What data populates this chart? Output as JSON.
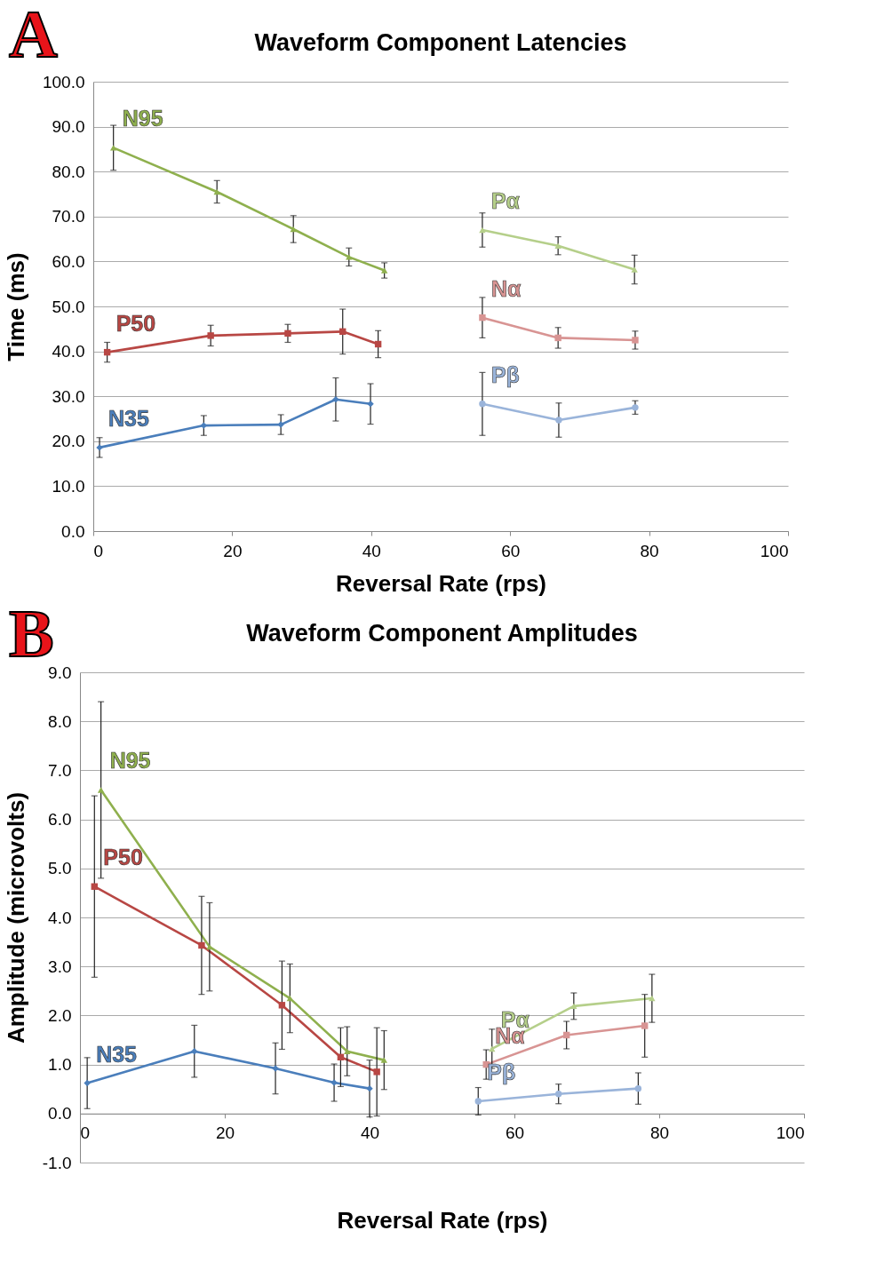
{
  "chart_data": [
    {
      "type": "line",
      "title": "Waveform Component Latencies",
      "xlabel": "Reversal Rate (rps)",
      "ylabel": "Time (ms)",
      "annotations": [
        "A"
      ],
      "xlim": [
        0,
        100
      ],
      "xticks": [
        0,
        20,
        40,
        60,
        80,
        100
      ],
      "ylim": [
        0,
        100
      ],
      "yticks": [
        {
          "value": 0,
          "label": "0.0"
        },
        {
          "value": 10,
          "label": "10.0"
        },
        {
          "value": 20,
          "label": "20.0"
        },
        {
          "value": 30,
          "label": "30.0"
        },
        {
          "value": 40,
          "label": "40.0"
        },
        {
          "value": 50,
          "label": "50.0"
        },
        {
          "value": 60,
          "label": "60.0"
        },
        {
          "value": 70,
          "label": "70.0"
        },
        {
          "value": 80,
          "label": "80.0"
        },
        {
          "value": 90,
          "label": "90.0"
        },
        {
          "value": 100,
          "label": "100.0"
        }
      ],
      "grid": "y",
      "legend": false,
      "series": [
        {
          "name": "N95",
          "color": "#8fb04e",
          "marker": "triangle",
          "x": [
            2.9,
            17.8,
            28.8,
            36.8,
            41.9
          ],
          "values": [
            85.3,
            75.5,
            67.2,
            61,
            58
          ],
          "errors": [
            5,
            2.5,
            3,
            2,
            1.7
          ]
        },
        {
          "name": "P50",
          "color": "#b84744",
          "marker": "square",
          "x": [
            2,
            16.9,
            28,
            35.9,
            41
          ],
          "values": [
            39.8,
            43.5,
            44,
            44.4,
            41.6
          ],
          "errors": [
            2.2,
            2.3,
            2,
            5,
            3
          ]
        },
        {
          "name": "N35",
          "color": "#4a7ebb",
          "marker": "diamond",
          "x": [
            0.9,
            15.9,
            27,
            34.9,
            39.9
          ],
          "values": [
            18.6,
            23.5,
            23.7,
            29.3,
            28.3
          ],
          "errors": [
            2.2,
            2.2,
            2.2,
            4.8,
            4.5
          ]
        },
        {
          "name": "Pα",
          "color": "#b5cf8a",
          "marker": "triangle",
          "x": [
            56,
            66.9,
            77.9
          ],
          "values": [
            67,
            63.5,
            58.2
          ],
          "errors": [
            3.8,
            2,
            3.2
          ]
        },
        {
          "name": "Nα",
          "color": "#d89493",
          "marker": "square",
          "x": [
            56,
            66.9,
            78
          ],
          "values": [
            47.5,
            43,
            42.5
          ],
          "errors": [
            4.5,
            2.3,
            2
          ]
        },
        {
          "name": "Pβ",
          "color": "#9ab4da",
          "marker": "circle",
          "x": [
            56,
            67,
            78
          ],
          "values": [
            28.3,
            24.7,
            27.5
          ],
          "errors": [
            7,
            3.8,
            1.5
          ]
        }
      ]
    },
    {
      "type": "line",
      "title": "Waveform Component Amplitudes",
      "xlabel": "Reversal Rate (rps)",
      "ylabel": "Amplitude (microvolts)",
      "annotations": [
        "B"
      ],
      "xlim": [
        0,
        100
      ],
      "xticks": [
        0,
        20,
        40,
        60,
        80,
        100
      ],
      "ylim": [
        -1,
        9
      ],
      "yticks": [
        {
          "value": -1,
          "label": "-1.0"
        },
        {
          "value": 0,
          "label": "0.0"
        },
        {
          "value": 1,
          "label": "1.0"
        },
        {
          "value": 2,
          "label": "2.0"
        },
        {
          "value": 3,
          "label": "3.0"
        },
        {
          "value": 4,
          "label": "4.0"
        },
        {
          "value": 5,
          "label": "5.0"
        },
        {
          "value": 6,
          "label": "6.0"
        },
        {
          "value": 7,
          "label": "7.0"
        },
        {
          "value": 8,
          "label": "8.0"
        },
        {
          "value": 9,
          "label": "9.0"
        }
      ],
      "grid": "y",
      "legend": false,
      "series": [
        {
          "name": "N95",
          "color": "#8fb04e",
          "marker": "triangle",
          "x": [
            2.9,
            17.9,
            29,
            36.9,
            42
          ],
          "values": [
            6.6,
            3.4,
            2.35,
            1.27,
            1.09
          ],
          "errors": [
            1.8,
            0.9,
            0.7,
            0.5,
            0.6
          ]
        },
        {
          "name": "P50",
          "color": "#b84744",
          "marker": "square",
          "x": [
            2,
            16.8,
            27.9,
            36,
            41
          ],
          "values": [
            4.63,
            3.43,
            2.21,
            1.15,
            0.85
          ],
          "errors": [
            1.85,
            1,
            0.9,
            0.6,
            0.9
          ]
        },
        {
          "name": "N35",
          "color": "#4a7ebb",
          "marker": "diamond",
          "x": [
            1,
            15.8,
            27,
            35.1,
            40
          ],
          "values": [
            0.62,
            1.27,
            0.92,
            0.63,
            0.51
          ],
          "errors": [
            0.52,
            0.53,
            0.52,
            0.38,
            0.58
          ]
        },
        {
          "name": "Pα",
          "color": "#b5cf8a",
          "marker": "triangle",
          "x": [
            56.9,
            68.2,
            79
          ],
          "values": [
            1.32,
            2.19,
            2.35
          ],
          "errors": [
            0.4,
            0.27,
            0.49
          ]
        },
        {
          "name": "Nα",
          "color": "#d89493",
          "marker": "square",
          "x": [
            56.1,
            67.2,
            78
          ],
          "values": [
            1,
            1.6,
            1.79
          ],
          "errors": [
            0.3,
            0.28,
            0.64
          ]
        },
        {
          "name": "Pβ",
          "color": "#9ab4da",
          "marker": "circle",
          "x": [
            55,
            66.1,
            77.1
          ],
          "values": [
            0.25,
            0.4,
            0.51
          ],
          "errors": [
            0.28,
            0.2,
            0.32
          ]
        }
      ]
    }
  ]
}
